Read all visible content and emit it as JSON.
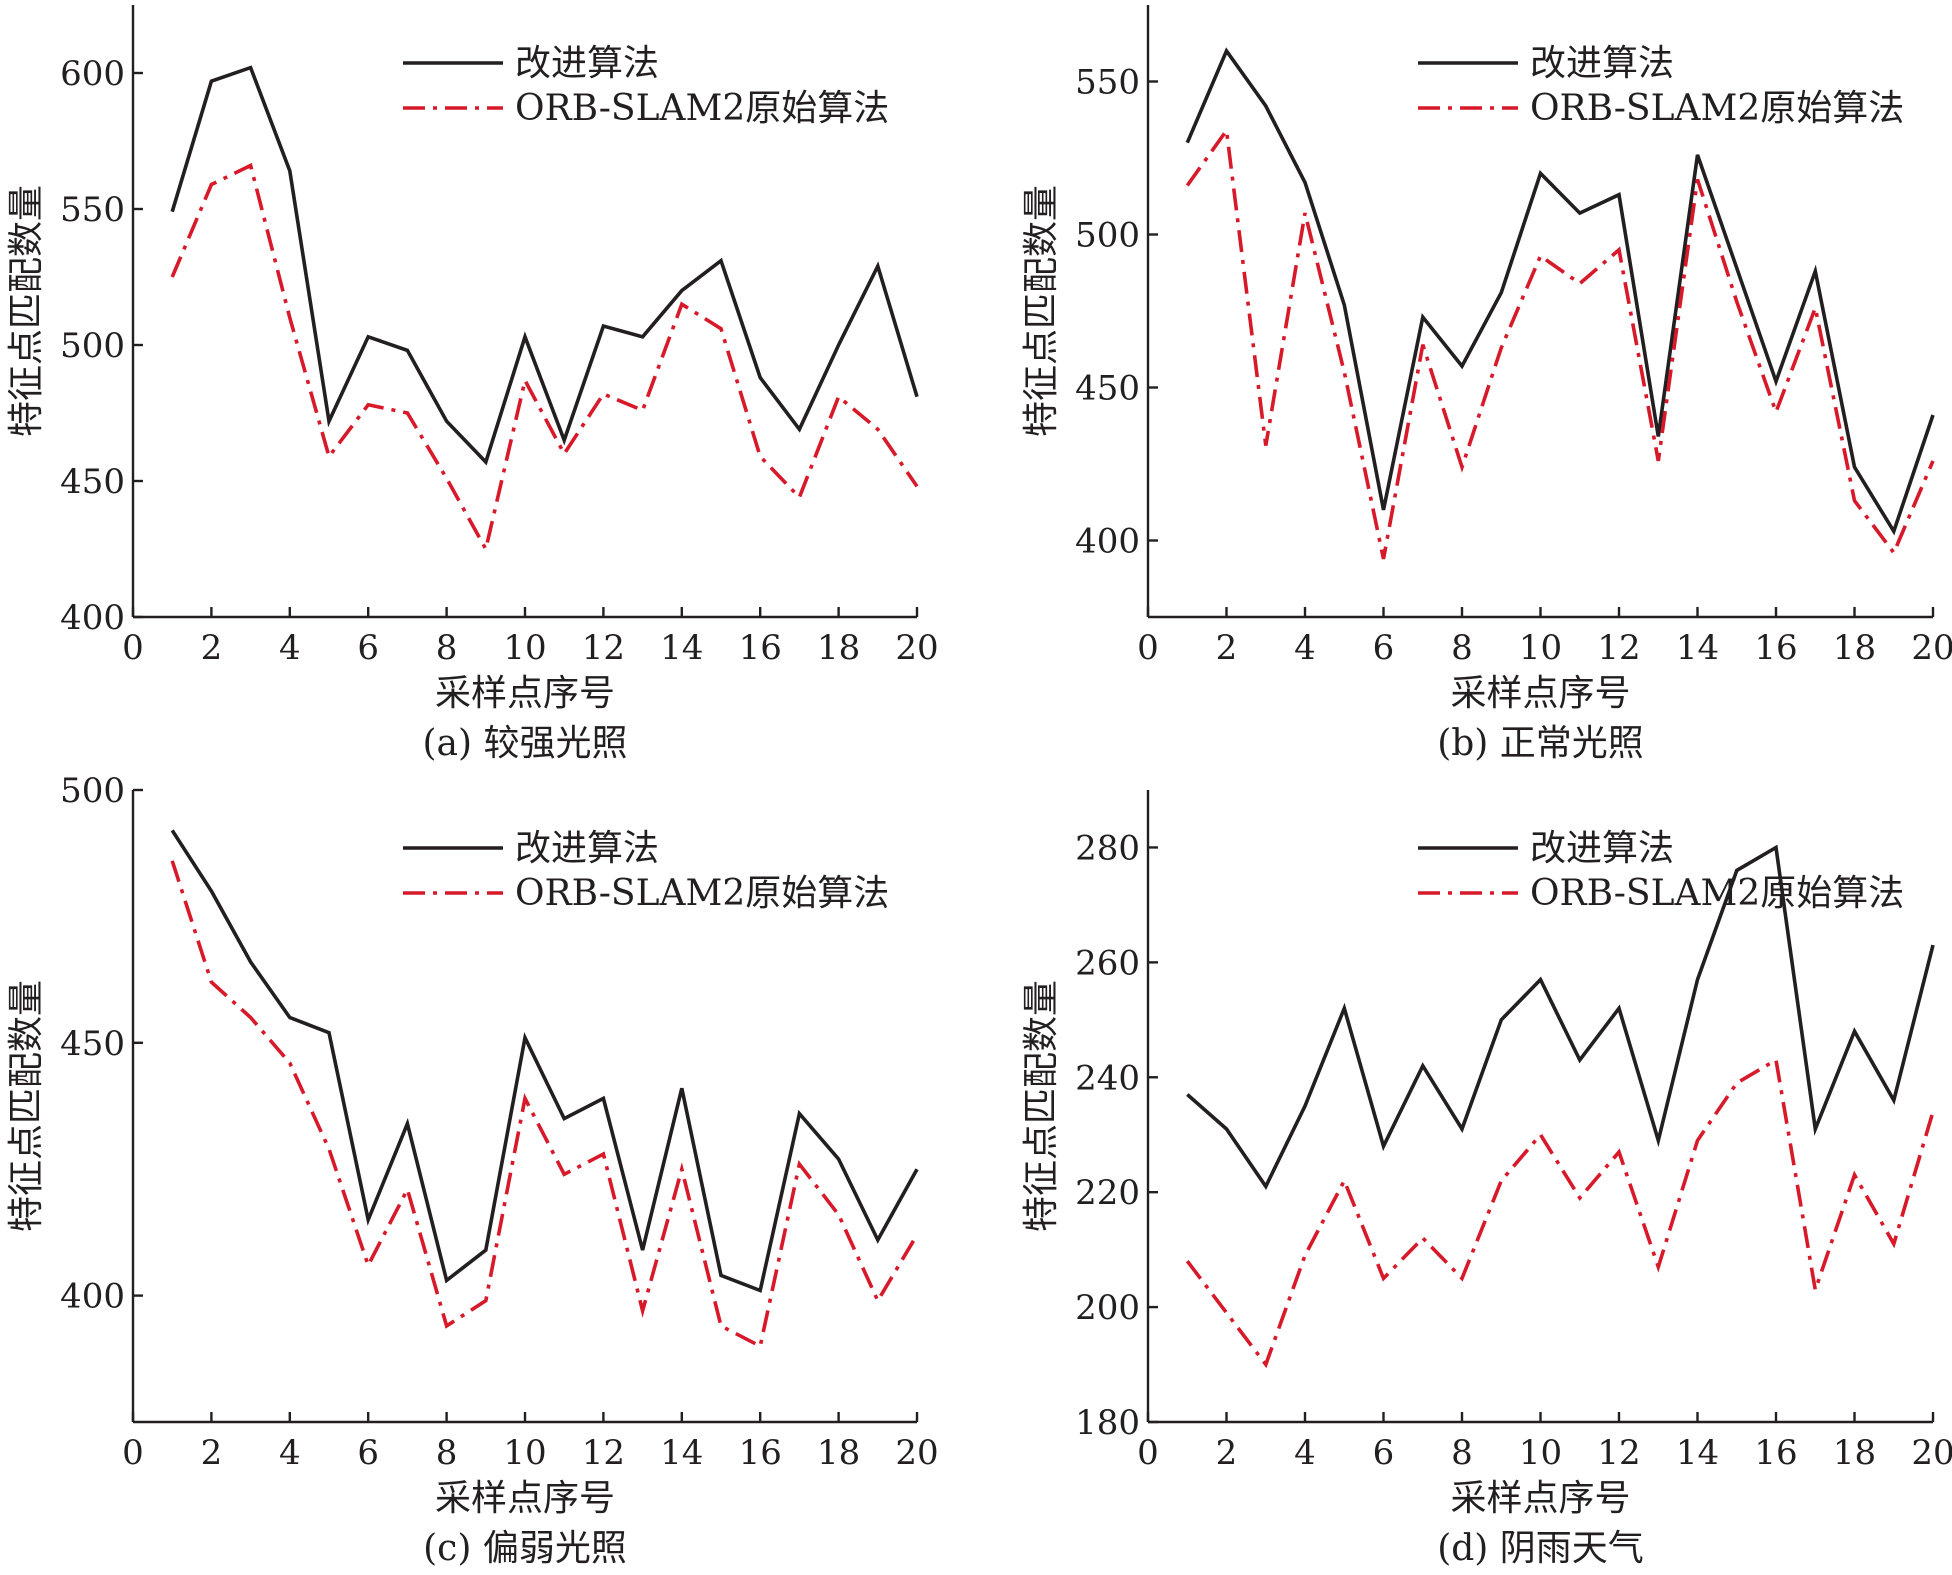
{
  "colors": {
    "improved": "#231f20",
    "original": "#d7192a",
    "axis": "#231f20"
  },
  "chart_data": [
    {
      "type": "line",
      "caption": "(a) 较强光照",
      "xlabel": "采样点序号",
      "ylabel": "特征点匹配数量",
      "xlim": [
        0,
        20
      ],
      "ylim": [
        400,
        625
      ],
      "xticks": [
        0,
        2,
        4,
        6,
        8,
        10,
        12,
        14,
        16,
        18,
        20
      ],
      "yticks": [
        400,
        450,
        500,
        550,
        600
      ],
      "legend_position": "top-center",
      "grid": false,
      "x": [
        1,
        2,
        3,
        4,
        5,
        6,
        7,
        8,
        9,
        10,
        11,
        12,
        13,
        14,
        15,
        16,
        17,
        18,
        19,
        20
      ],
      "series": [
        {
          "name": "改进算法",
          "style": "solid",
          "color": "#231f20",
          "values": [
            549,
            597,
            602,
            564,
            472,
            503,
            498,
            472,
            457,
            503,
            465,
            507,
            503,
            520,
            531,
            488,
            469,
            500,
            529,
            481
          ]
        },
        {
          "name": "ORB-SLAM2原始算法",
          "style": "dash-dot",
          "color": "#d7192a",
          "values": [
            525,
            559,
            566,
            510,
            459,
            478,
            475,
            451,
            425,
            487,
            460,
            482,
            476,
            515,
            506,
            459,
            444,
            481,
            469,
            448
          ]
        }
      ]
    },
    {
      "type": "line",
      "caption": "(b) 正常光照",
      "xlabel": "采样点序号",
      "ylabel": "特征点匹配数量",
      "xlim": [
        0,
        20
      ],
      "ylim": [
        375,
        575
      ],
      "xticks": [
        0,
        2,
        4,
        6,
        8,
        10,
        12,
        14,
        16,
        18,
        20
      ],
      "yticks": [
        400,
        450,
        500,
        550
      ],
      "legend_position": "top-center",
      "grid": false,
      "x": [
        1,
        2,
        3,
        4,
        5,
        6,
        7,
        8,
        9,
        10,
        11,
        12,
        13,
        14,
        15,
        16,
        17,
        18,
        19,
        20
      ],
      "series": [
        {
          "name": "改进算法",
          "style": "solid",
          "color": "#231f20",
          "values": [
            530,
            560,
            542,
            517,
            477,
            410,
            473,
            457,
            481,
            520,
            507,
            513,
            434,
            526,
            489,
            452,
            488,
            424,
            403,
            441
          ]
        },
        {
          "name": "ORB-SLAM2原始算法",
          "style": "dash-dot",
          "color": "#d7192a",
          "values": [
            516,
            534,
            431,
            507,
            455,
            394,
            464,
            424,
            463,
            493,
            484,
            495,
            426,
            518,
            478,
            442,
            476,
            413,
            396,
            426
          ]
        }
      ]
    },
    {
      "type": "line",
      "caption": "(c) 偏弱光照",
      "xlabel": "采样点序号",
      "ylabel": "特征点匹配数量",
      "xlim": [
        0,
        20
      ],
      "ylim": [
        375,
        500
      ],
      "xticks": [
        0,
        2,
        4,
        6,
        8,
        10,
        12,
        14,
        16,
        18,
        20
      ],
      "yticks": [
        400,
        450,
        500
      ],
      "legend_position": "top-center",
      "grid": false,
      "x": [
        1,
        2,
        3,
        4,
        5,
        6,
        7,
        8,
        9,
        10,
        11,
        12,
        13,
        14,
        15,
        16,
        17,
        18,
        19,
        20
      ],
      "series": [
        {
          "name": "改进算法",
          "style": "solid",
          "color": "#231f20",
          "values": [
            492,
            480,
            466,
            455,
            452,
            415,
            434,
            403,
            409,
            451,
            435,
            439,
            409,
            441,
            404,
            401,
            436,
            427,
            411,
            425
          ]
        },
        {
          "name": "ORB-SLAM2原始算法",
          "style": "dash-dot",
          "color": "#d7192a",
          "values": [
            486,
            462,
            455,
            446,
            429,
            406,
            421,
            394,
            399,
            439,
            424,
            428,
            397,
            425,
            394,
            390,
            426,
            416,
            399,
            412
          ]
        }
      ]
    },
    {
      "type": "line",
      "caption": "(d) 阴雨天气",
      "xlabel": "采样点序号",
      "ylabel": "特征点匹配数量",
      "xlim": [
        0,
        20
      ],
      "ylim": [
        180,
        290
      ],
      "xticks": [
        0,
        2,
        4,
        6,
        8,
        10,
        12,
        14,
        16,
        18,
        20
      ],
      "yticks": [
        180,
        200,
        220,
        240,
        260,
        280
      ],
      "legend_position": "top-center",
      "grid": false,
      "x": [
        1,
        2,
        3,
        4,
        5,
        6,
        7,
        8,
        9,
        10,
        11,
        12,
        13,
        14,
        15,
        16,
        17,
        18,
        19,
        20
      ],
      "series": [
        {
          "name": "改进算法",
          "style": "solid",
          "color": "#231f20",
          "values": [
            237,
            231,
            221,
            235,
            252,
            228,
            242,
            231,
            250,
            257,
            243,
            252,
            229,
            257,
            276,
            280,
            231,
            248,
            236,
            263
          ]
        },
        {
          "name": "ORB-SLAM2原始算法",
          "style": "dash-dot",
          "color": "#d7192a",
          "values": [
            208,
            199,
            190,
            209,
            222,
            205,
            212,
            205,
            222,
            230,
            219,
            227,
            207,
            229,
            239,
            243,
            203,
            223,
            211,
            234
          ]
        }
      ]
    }
  ]
}
